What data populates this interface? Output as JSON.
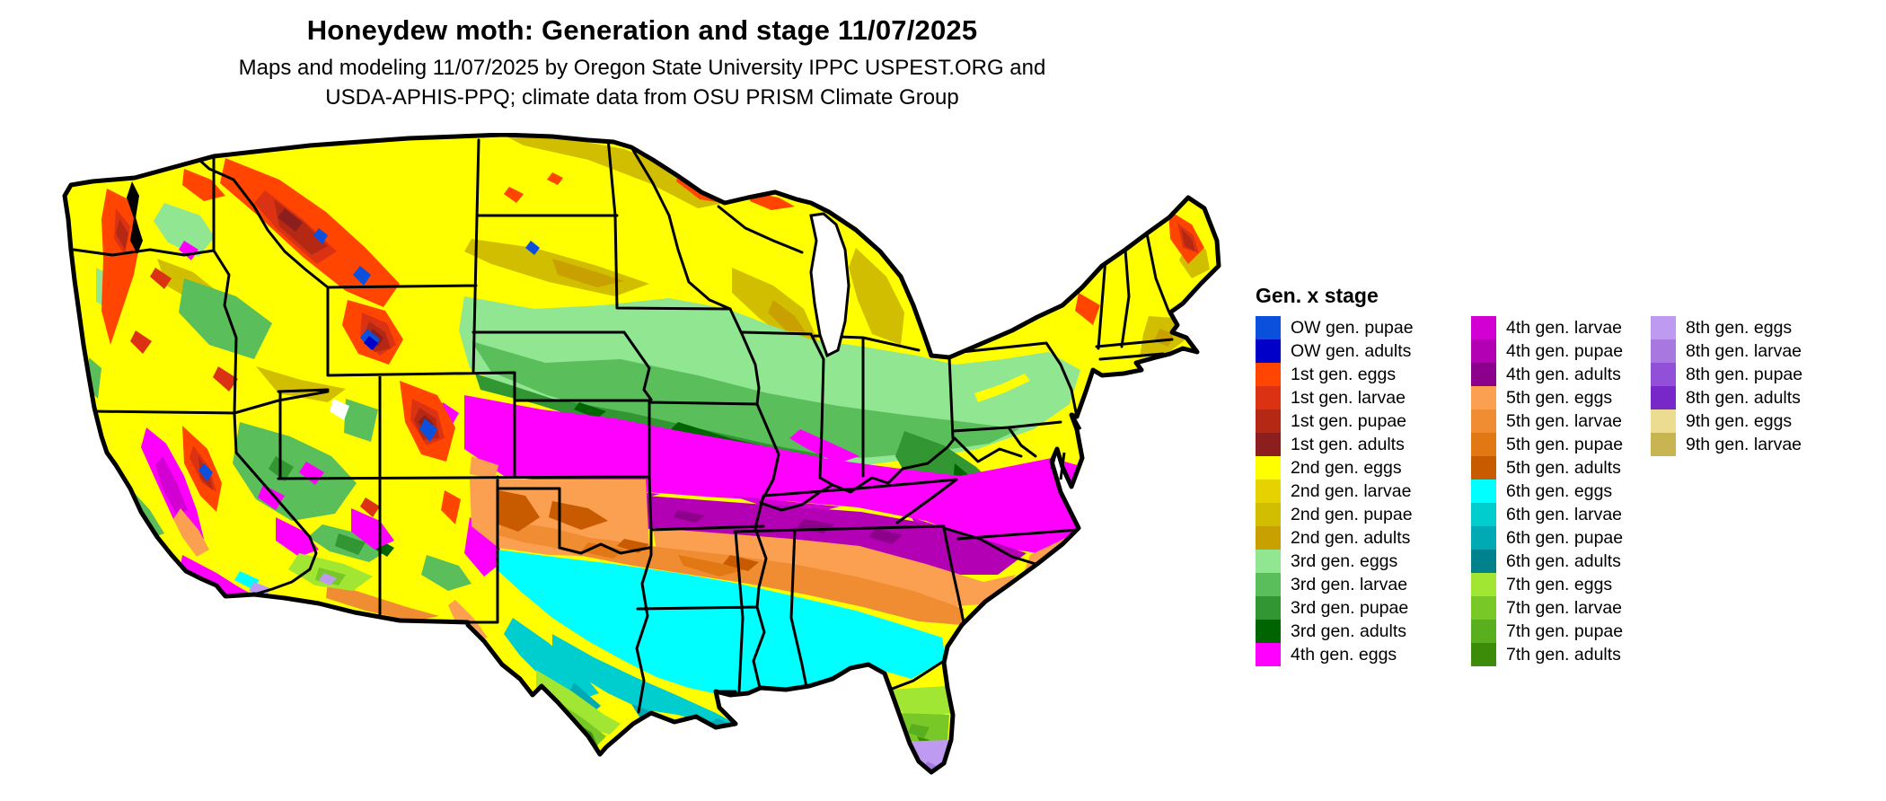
{
  "header": {
    "title": "Honeydew moth: Generation and stage 11/07/2025",
    "subtitle_line1": "Maps and modeling 11/07/2025 by Oregon State University IPPC USPEST.ORG and",
    "subtitle_line2": "USDA-APHIS-PPQ; climate data from OSU PRISM Climate Group"
  },
  "colors": {
    "ow_pupae": "#0A50DC",
    "ow_adults": "#0000C8",
    "g1_eggs": "#FF4500",
    "g1_larvae": "#DC3214",
    "g1_pupae": "#B42814",
    "g1_adults": "#8C1E1E",
    "g2_eggs": "#FFFF00",
    "g2_larvae": "#E6D200",
    "g2_pupae": "#D2BE00",
    "g2_adults": "#C8A000",
    "g3_eggs": "#91E691",
    "g3_larvae": "#5ABE5A",
    "g3_pupae": "#329632",
    "g3_adults": "#006400",
    "g4_eggs": "#FF00FF",
    "g4_larvae": "#D200D2",
    "g4_pupae": "#B400B4",
    "g4_adults": "#8C008C",
    "g5_eggs": "#FAA050",
    "g5_larvae": "#F08C32",
    "g5_pupae": "#E17814",
    "g5_adults": "#C85A00",
    "g6_eggs": "#00FFFF",
    "g6_larvae": "#00CDCD",
    "g6_pupae": "#00AAB4",
    "g6_adults": "#00828C",
    "g7_eggs": "#A0E632",
    "g7_larvae": "#78C828",
    "g7_pupae": "#5AAF1E",
    "g7_adults": "#3C8C0A",
    "g8_eggs": "#BE9BF0",
    "g8_larvae": "#A878E0",
    "g8_pupae": "#9150D7",
    "g8_adults": "#7828C8",
    "g9_eggs": "#EBDC91",
    "g9_larvae": "#C8B450",
    "state_border": "#000000",
    "water": "#FFFFFF"
  },
  "legend": {
    "title": "Gen. x stage",
    "columns": [
      {
        "items": [
          {
            "label": "OW gen. pupae",
            "color_key": "ow_pupae"
          },
          {
            "label": "OW gen. adults",
            "color_key": "ow_adults"
          },
          {
            "label": "1st gen. eggs",
            "color_key": "g1_eggs"
          },
          {
            "label": "1st gen. larvae",
            "color_key": "g1_larvae"
          },
          {
            "label": "1st gen. pupae",
            "color_key": "g1_pupae"
          },
          {
            "label": "1st gen. adults",
            "color_key": "g1_adults"
          },
          {
            "label": "2nd gen. eggs",
            "color_key": "g2_eggs"
          },
          {
            "label": "2nd gen. larvae",
            "color_key": "g2_larvae"
          },
          {
            "label": "2nd gen. pupae",
            "color_key": "g2_pupae"
          },
          {
            "label": "2nd gen. adults",
            "color_key": "g2_adults"
          },
          {
            "label": "3rd gen. eggs",
            "color_key": "g3_eggs"
          },
          {
            "label": "3rd gen. larvae",
            "color_key": "g3_larvae"
          },
          {
            "label": "3rd gen. pupae",
            "color_key": "g3_pupae"
          },
          {
            "label": "3rd gen. adults",
            "color_key": "g3_adults"
          },
          {
            "label": "4th gen. eggs",
            "color_key": "g4_eggs"
          }
        ]
      },
      {
        "items": [
          {
            "label": "4th gen. larvae",
            "color_key": "g4_larvae"
          },
          {
            "label": "4th gen. pupae",
            "color_key": "g4_pupae"
          },
          {
            "label": "4th gen. adults",
            "color_key": "g4_adults"
          },
          {
            "label": "5th gen. eggs",
            "color_key": "g5_eggs"
          },
          {
            "label": "5th gen. larvae",
            "color_key": "g5_larvae"
          },
          {
            "label": "5th gen. pupae",
            "color_key": "g5_pupae"
          },
          {
            "label": "5th gen. adults",
            "color_key": "g5_adults"
          },
          {
            "label": "6th gen. eggs",
            "color_key": "g6_eggs"
          },
          {
            "label": "6th gen. larvae",
            "color_key": "g6_larvae"
          },
          {
            "label": "6th gen. pupae",
            "color_key": "g6_pupae"
          },
          {
            "label": "6th gen. adults",
            "color_key": "g6_adults"
          },
          {
            "label": "7th gen. eggs",
            "color_key": "g7_eggs"
          },
          {
            "label": "7th gen. larvae",
            "color_key": "g7_larvae"
          },
          {
            "label": "7th gen. pupae",
            "color_key": "g7_pupae"
          },
          {
            "label": "7th gen. adults",
            "color_key": "g7_adults"
          }
        ]
      },
      {
        "items": [
          {
            "label": "8th gen. eggs",
            "color_key": "g8_eggs"
          },
          {
            "label": "8th gen. larvae",
            "color_key": "g8_larvae"
          },
          {
            "label": "8th gen. pupae",
            "color_key": "g8_pupae"
          },
          {
            "label": "8th gen. adults",
            "color_key": "g8_adults"
          },
          {
            "label": "9th gen. eggs",
            "color_key": "g9_eggs"
          },
          {
            "label": "9th gen. larvae",
            "color_key": "g9_larvae"
          }
        ]
      }
    ]
  }
}
